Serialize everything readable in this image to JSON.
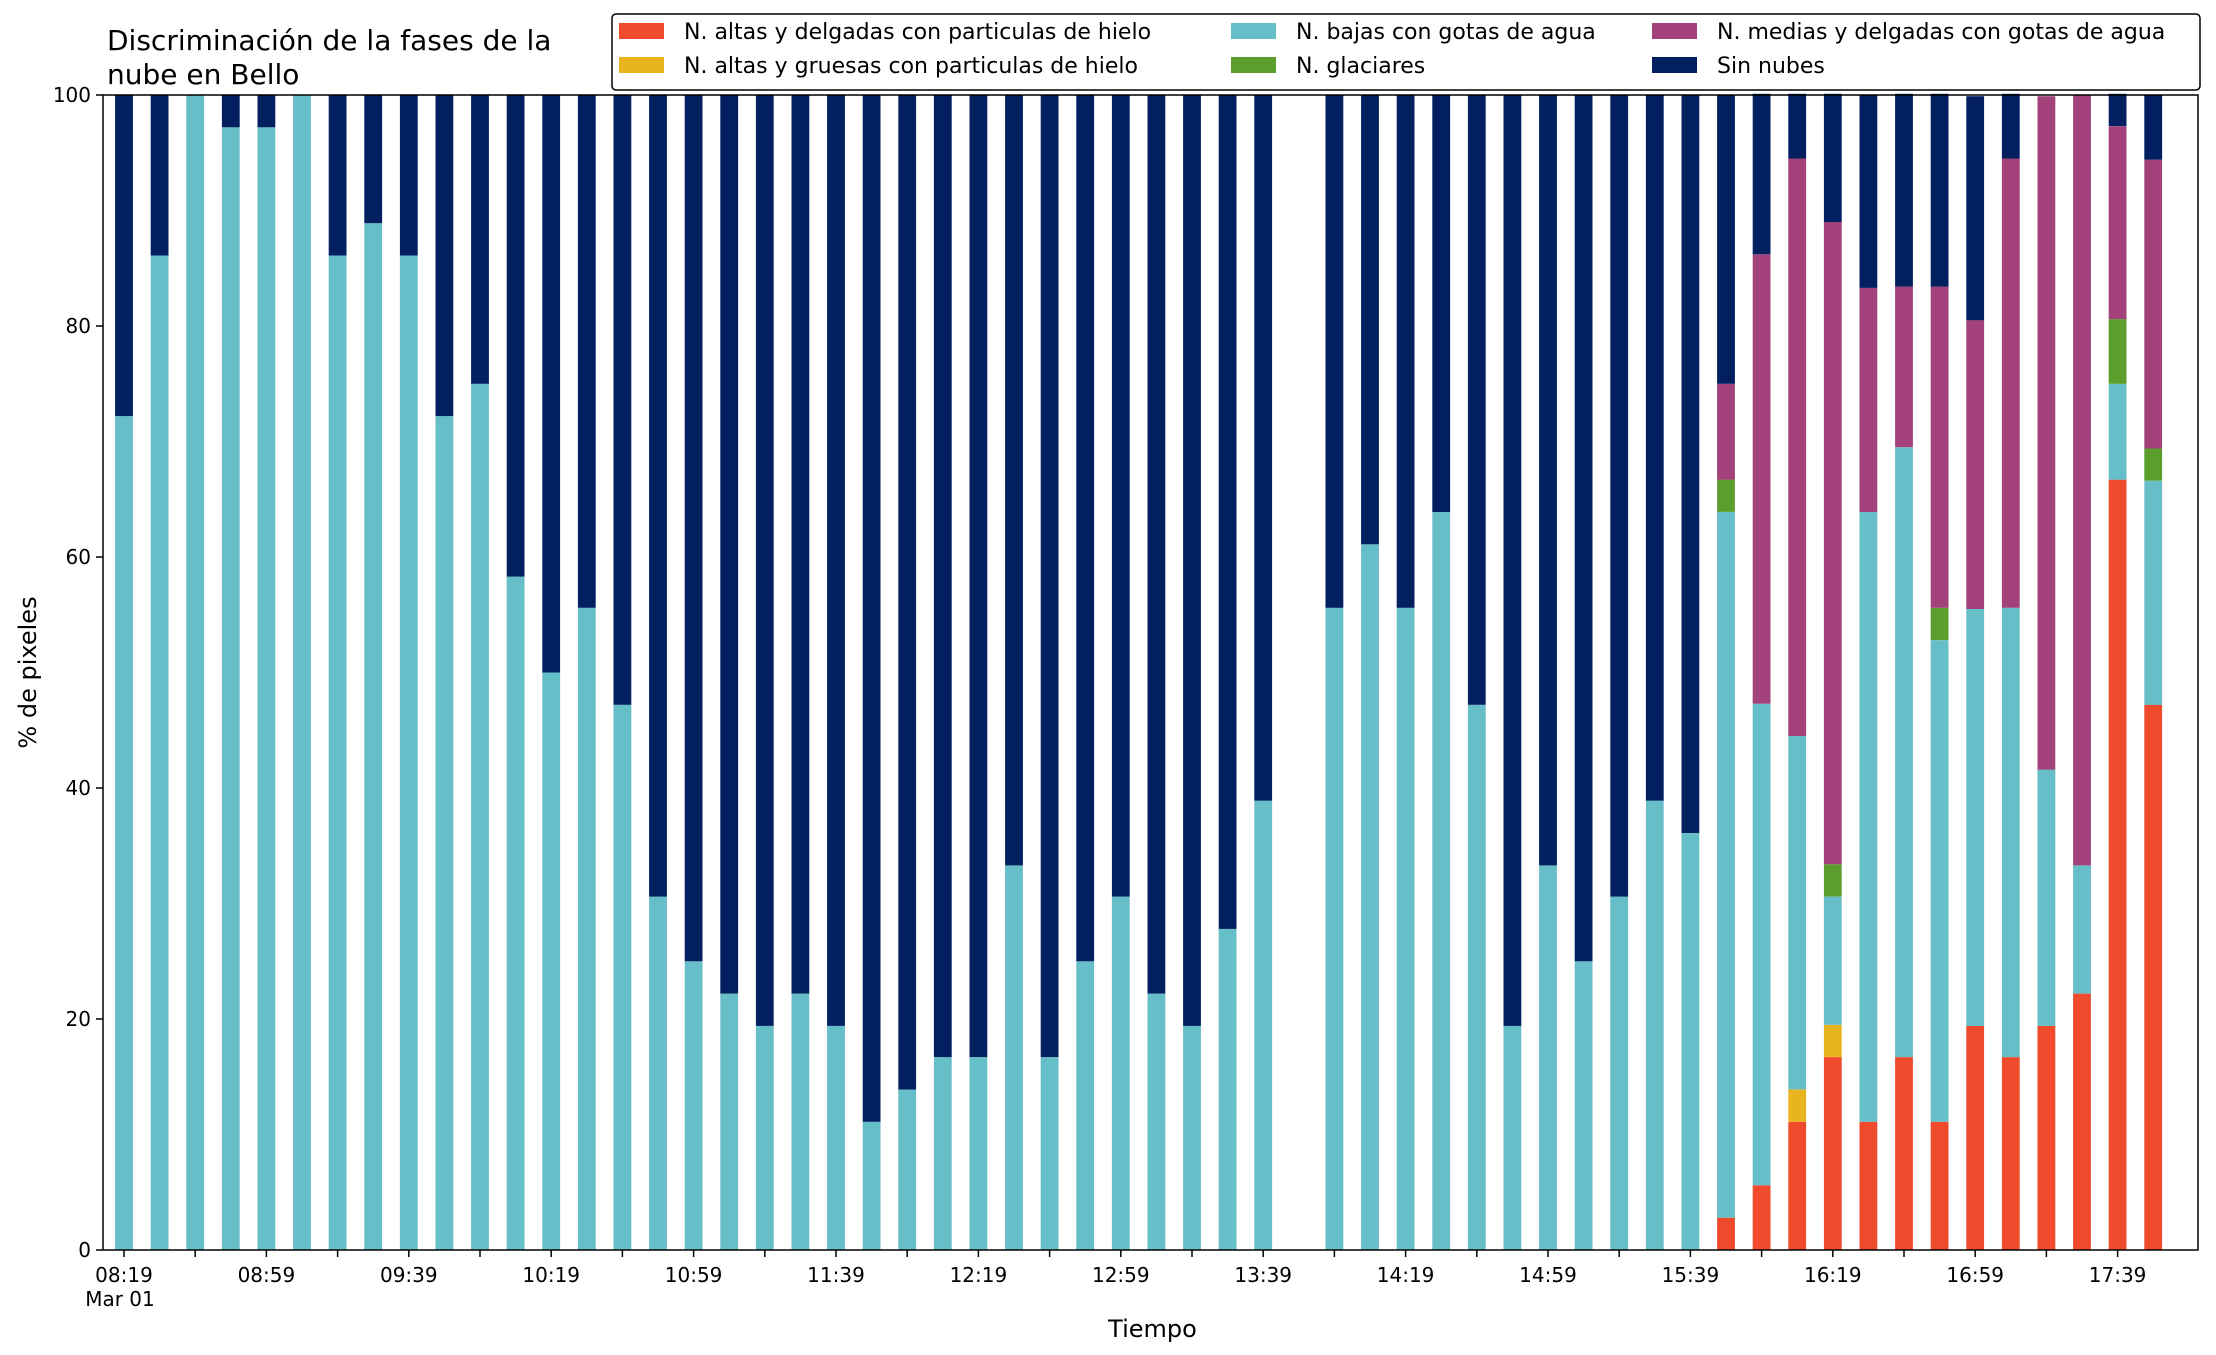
{
  "chart_data": {
    "type": "bar",
    "stacked": true,
    "title_lines": [
      "Discriminación de la fases de la",
      "nube en Bello"
    ],
    "xlabel": "Tiempo",
    "ylabel": "% de pixeles",
    "ylim": [
      0,
      100
    ],
    "yticks": [
      0,
      20,
      40,
      60,
      80,
      100
    ],
    "xtick_labels": [
      "08:19",
      "08:59",
      "09:39",
      "10:19",
      "10:59",
      "11:39",
      "12:19",
      "12:59",
      "13:39",
      "14:19",
      "14:59",
      "15:39",
      "16:19",
      "16:59",
      "17:39"
    ],
    "xtick_sublabel": "Mar 01",
    "legend_placement": "top-right",
    "legend_order": [
      0,
      1,
      2,
      3,
      4,
      5
    ],
    "categories": [
      "08:19",
      "08:29",
      "08:39",
      "08:49",
      "08:59",
      "09:09",
      "09:19",
      "09:29",
      "09:39",
      "09:49",
      "09:59",
      "10:09",
      "10:19",
      "10:29",
      "10:39",
      "10:49",
      "10:59",
      "11:09",
      "11:19",
      "11:29",
      "11:39",
      "11:49",
      "11:59",
      "12:09",
      "12:19",
      "12:29",
      "12:39",
      "12:49",
      "12:59",
      "13:09",
      "13:19",
      "13:29",
      "13:39",
      "13:49",
      "13:59",
      "14:09",
      "14:19",
      "14:29",
      "14:39",
      "14:49",
      "14:59",
      "15:09",
      "15:19",
      "15:29",
      "15:39",
      "15:49",
      "15:59",
      "16:09",
      "16:19",
      "16:29",
      "16:39",
      "16:49",
      "16:59",
      "17:09",
      "17:19",
      "17:29",
      "17:39",
      "17:49"
    ],
    "series": [
      {
        "name": "N. altas y delgadas con particulas de hielo",
        "color": "#ee4a2b",
        "values": [
          0,
          0,
          0,
          0,
          0,
          0,
          0,
          0,
          0,
          0,
          0,
          0,
          0,
          0,
          0,
          0,
          0,
          0,
          0,
          0,
          0,
          0,
          0,
          0,
          0,
          0,
          0,
          0,
          0,
          0,
          0,
          0,
          0,
          0,
          0,
          0,
          0,
          0,
          0,
          0,
          0,
          0,
          0,
          0,
          0,
          2.8,
          5.6,
          11.1,
          16.7,
          11.1,
          16.7,
          11.1,
          19.4,
          16.7,
          19.4,
          22.2,
          66.7,
          47.2
        ]
      },
      {
        "name": "N. altas y gruesas con particulas de hielo",
        "color": "#e8b520",
        "values": [
          0,
          0,
          0,
          0,
          0,
          0,
          0,
          0,
          0,
          0,
          0,
          0,
          0,
          0,
          0,
          0,
          0,
          0,
          0,
          0,
          0,
          0,
          0,
          0,
          0,
          0,
          0,
          0,
          0,
          0,
          0,
          0,
          0,
          0,
          0,
          0,
          0,
          0,
          0,
          0,
          0,
          0,
          0,
          0,
          0,
          0,
          0,
          2.8,
          2.8,
          0,
          0,
          0,
          0,
          0,
          0,
          0,
          0,
          0
        ]
      },
      {
        "name": "N. bajas con gotas de agua",
        "color": "#66bec8",
        "values": [
          72.2,
          86.1,
          100,
          97.2,
          97.2,
          100,
          86.1,
          88.9,
          86.1,
          72.2,
          75,
          58.3,
          50,
          55.6,
          47.2,
          30.6,
          25,
          22.2,
          19.4,
          22.2,
          19.4,
          11.1,
          13.9,
          16.7,
          16.7,
          33.3,
          16.7,
          25,
          30.6,
          22.2,
          19.4,
          27.8,
          38.9,
          0,
          55.6,
          61.1,
          55.6,
          63.9,
          47.2,
          19.4,
          33.3,
          25,
          30.6,
          38.9,
          36.1,
          61.1,
          41.7,
          30.6,
          11.1,
          52.8,
          52.8,
          41.7,
          36.1,
          38.9,
          22.2,
          11.1,
          8.3,
          19.4
        ]
      },
      {
        "name": "N. glaciares",
        "color": "#5b9e2e",
        "values": [
          0,
          0,
          0,
          0,
          0,
          0,
          0,
          0,
          0,
          0,
          0,
          0,
          0,
          0,
          0,
          0,
          0,
          0,
          0,
          0,
          0,
          0,
          0,
          0,
          0,
          0,
          0,
          0,
          0,
          0,
          0,
          0,
          0,
          0,
          0,
          0,
          0,
          0,
          0,
          0,
          0,
          0,
          0,
          0,
          0,
          2.8,
          0,
          0,
          2.8,
          0,
          0,
          2.8,
          0,
          0,
          0,
          0,
          5.6,
          2.8
        ]
      },
      {
        "name": "N. medias y delgadas con gotas de agua",
        "color": "#a2417a",
        "values": [
          0,
          0,
          0,
          0,
          0,
          0,
          0,
          0,
          0,
          0,
          0,
          0,
          0,
          0,
          0,
          0,
          0,
          0,
          0,
          0,
          0,
          0,
          0,
          0,
          0,
          0,
          0,
          0,
          0,
          0,
          0,
          0,
          0,
          0,
          0,
          0,
          0,
          0,
          0,
          0,
          0,
          0,
          0,
          0,
          0,
          8.3,
          38.9,
          50,
          55.6,
          19.4,
          13.9,
          27.8,
          25,
          38.9,
          58.3,
          66.7,
          16.7,
          25
        ]
      },
      {
        "name": "Sin nubes",
        "color": "#021f60",
        "values": [
          27.8,
          13.9,
          0,
          2.8,
          2.8,
          0,
          13.9,
          11.1,
          13.9,
          27.8,
          25,
          41.7,
          50,
          44.4,
          52.8,
          69.4,
          75,
          77.8,
          80.6,
          77.8,
          80.6,
          88.9,
          86.1,
          83.3,
          83.3,
          66.7,
          83.3,
          75,
          69.4,
          77.8,
          80.6,
          72.2,
          61.1,
          0,
          44.4,
          38.9,
          44.4,
          36.1,
          52.8,
          80.6,
          66.7,
          75,
          69.4,
          61.1,
          63.9,
          25,
          13.9,
          5.6,
          11.1,
          16.7,
          16.7,
          16.7,
          19.4,
          5.6,
          0,
          0,
          2.8,
          5.6
        ]
      }
    ]
  }
}
